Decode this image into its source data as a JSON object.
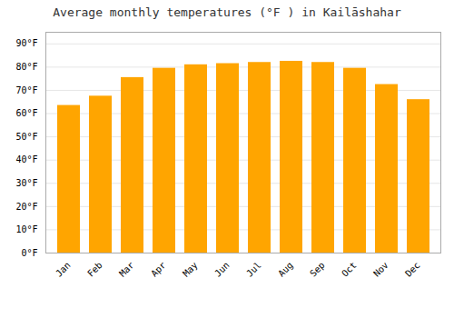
{
  "chart_data": {
    "type": "bar",
    "title": "Average monthly temperatures (°F ) in Kailāshahar",
    "categories": [
      "Jan",
      "Feb",
      "Mar",
      "Apr",
      "May",
      "Jun",
      "Jul",
      "Aug",
      "Sep",
      "Oct",
      "Nov",
      "Dec"
    ],
    "values": [
      63.5,
      67.5,
      75.5,
      79.5,
      81.0,
      81.5,
      82.0,
      82.5,
      82.0,
      79.5,
      72.5,
      66.0
    ],
    "color": "#FFA500",
    "ylim": [
      0,
      95
    ],
    "yticks": [
      {
        "value": 0,
        "label": "0°F"
      },
      {
        "value": 10,
        "label": "10°F"
      },
      {
        "value": 20,
        "label": "20°F"
      },
      {
        "value": 30,
        "label": "30°F"
      },
      {
        "value": 40,
        "label": "40°F"
      },
      {
        "value": 50,
        "label": "50°F"
      },
      {
        "value": 60,
        "label": "60°F"
      },
      {
        "value": 70,
        "label": "70°F"
      },
      {
        "value": 80,
        "label": "80°F"
      },
      {
        "value": 90,
        "label": "90°F"
      }
    ],
    "grid": true
  }
}
